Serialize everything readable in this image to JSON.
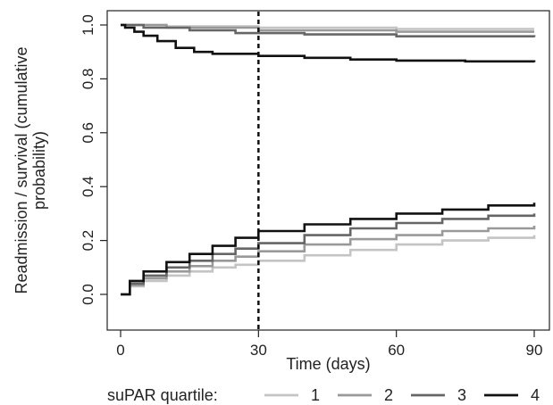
{
  "chart_data": {
    "type": "line",
    "title": "",
    "xlabel": "Time (days)",
    "ylabel_line1": "Readmission / survival (cumulative",
    "ylabel_line2": "probability)",
    "xlim": [
      0,
      90
    ],
    "ylim": [
      0,
      1.0
    ],
    "x_ticks": [
      0,
      30,
      60,
      90
    ],
    "y_ticks": [
      0.0,
      0.2,
      0.4,
      0.6,
      0.8,
      1.0
    ],
    "x_tick_labels": [
      "0",
      "30",
      "60",
      "90"
    ],
    "y_tick_labels": [
      "0.0",
      "0.2",
      "0.4",
      "0.6",
      "0.8",
      "1.0"
    ],
    "grid": false,
    "reference_line": {
      "x": 30,
      "style": "dashed"
    },
    "legend": {
      "title": "suPAR quartile:",
      "placement": "bottom",
      "labels": [
        "1",
        "2",
        "3",
        "4"
      ]
    },
    "series": [
      {
        "key": "1",
        "kind": "survival",
        "color": "#c4c4c4",
        "points": [
          [
            0,
            1.0
          ],
          [
            10,
            0.995
          ],
          [
            30,
            0.99
          ],
          [
            60,
            0.985
          ],
          [
            90,
            0.985
          ]
        ]
      },
      {
        "key": "2",
        "kind": "survival",
        "color": "#999999",
        "points": [
          [
            0,
            1.0
          ],
          [
            10,
            0.99
          ],
          [
            30,
            0.98
          ],
          [
            60,
            0.975
          ],
          [
            90,
            0.975
          ]
        ]
      },
      {
        "key": "3",
        "kind": "survival",
        "color": "#666666",
        "points": [
          [
            0,
            1.0
          ],
          [
            5,
            0.99
          ],
          [
            15,
            0.98
          ],
          [
            25,
            0.97
          ],
          [
            40,
            0.965
          ],
          [
            60,
            0.958
          ],
          [
            90,
            0.955
          ]
        ]
      },
      {
        "key": "4",
        "kind": "survival",
        "color": "#111111",
        "points": [
          [
            0,
            1.0
          ],
          [
            1,
            0.99
          ],
          [
            3,
            0.975
          ],
          [
            5,
            0.96
          ],
          [
            8,
            0.94
          ],
          [
            12,
            0.915
          ],
          [
            16,
            0.9
          ],
          [
            20,
            0.893
          ],
          [
            30,
            0.885
          ],
          [
            40,
            0.878
          ],
          [
            50,
            0.872
          ],
          [
            60,
            0.868
          ],
          [
            75,
            0.865
          ],
          [
            90,
            0.862
          ]
        ]
      },
      {
        "key": "1",
        "kind": "readmission",
        "color": "#c4c4c4",
        "points": [
          [
            0,
            0.0
          ],
          [
            2,
            0.03
          ],
          [
            5,
            0.05
          ],
          [
            10,
            0.07
          ],
          [
            15,
            0.085
          ],
          [
            20,
            0.1
          ],
          [
            25,
            0.11
          ],
          [
            30,
            0.125
          ],
          [
            40,
            0.145
          ],
          [
            50,
            0.165
          ],
          [
            60,
            0.185
          ],
          [
            70,
            0.2
          ],
          [
            80,
            0.21
          ],
          [
            90,
            0.22
          ]
        ]
      },
      {
        "key": "2",
        "kind": "readmission",
        "color": "#999999",
        "points": [
          [
            0,
            0.0
          ],
          [
            2,
            0.035
          ],
          [
            5,
            0.06
          ],
          [
            10,
            0.085
          ],
          [
            15,
            0.105
          ],
          [
            20,
            0.125
          ],
          [
            25,
            0.14
          ],
          [
            30,
            0.16
          ],
          [
            40,
            0.185
          ],
          [
            50,
            0.205
          ],
          [
            60,
            0.22
          ],
          [
            70,
            0.235
          ],
          [
            80,
            0.245
          ],
          [
            90,
            0.255
          ]
        ]
      },
      {
        "key": "3",
        "kind": "readmission",
        "color": "#666666",
        "points": [
          [
            0,
            0.0
          ],
          [
            2,
            0.04
          ],
          [
            5,
            0.07
          ],
          [
            10,
            0.1
          ],
          [
            15,
            0.125
          ],
          [
            20,
            0.15
          ],
          [
            25,
            0.17
          ],
          [
            30,
            0.19
          ],
          [
            40,
            0.22
          ],
          [
            50,
            0.245
          ],
          [
            60,
            0.265
          ],
          [
            70,
            0.28
          ],
          [
            80,
            0.292
          ],
          [
            90,
            0.3
          ]
        ]
      },
      {
        "key": "4",
        "kind": "readmission",
        "color": "#111111",
        "points": [
          [
            0,
            0.0
          ],
          [
            2,
            0.05
          ],
          [
            5,
            0.085
          ],
          [
            10,
            0.12
          ],
          [
            15,
            0.15
          ],
          [
            20,
            0.18
          ],
          [
            25,
            0.21
          ],
          [
            30,
            0.235
          ],
          [
            40,
            0.26
          ],
          [
            50,
            0.28
          ],
          [
            60,
            0.3
          ],
          [
            70,
            0.315
          ],
          [
            80,
            0.33
          ],
          [
            90,
            0.34
          ]
        ]
      }
    ]
  }
}
